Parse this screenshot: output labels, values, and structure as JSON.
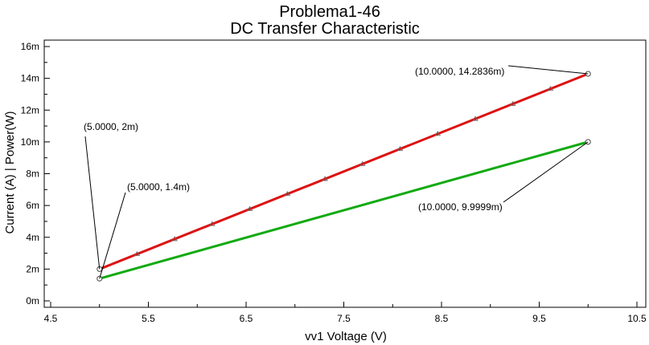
{
  "chart_data": {
    "type": "line",
    "title": "Problema1-46",
    "subtitle": "DC Transfer Characteristic",
    "xlabel": "vv1 Voltage (V)",
    "ylabel": "Current (A) | Power(W)",
    "xlim": [
      4.5,
      10.5
    ],
    "ylim": [
      0,
      0.016
    ],
    "x_ticks": [
      4.5,
      5.5,
      6.5,
      7.5,
      8.5,
      9.5,
      10.5
    ],
    "x_tick_labels": [
      "4.5",
      "5.5",
      "6.5",
      "7.5",
      "8.5",
      "9.5",
      "10.5"
    ],
    "y_ticks": [
      0,
      0.002,
      0.004,
      0.006,
      0.008,
      0.01,
      0.012,
      0.014,
      0.016
    ],
    "y_tick_labels": [
      "0m",
      "2m",
      "4m",
      "6m",
      "8m",
      "10m",
      "12m",
      "14m",
      "16m"
    ],
    "grid": false,
    "series": [
      {
        "color": "#dd1111",
        "marker": "triangle",
        "x": [
          5.0,
          10.0
        ],
        "y": [
          0.002,
          0.0142836
        ]
      },
      {
        "color": "#11aa11",
        "marker": "none",
        "x": [
          5.0,
          10.0
        ],
        "y": [
          0.0014,
          0.0099999
        ]
      }
    ],
    "annotations": [
      {
        "text": "(10.0000, 14.2836m)",
        "x": 10.0,
        "y": 0.0142836
      },
      {
        "text": "(5.0000, 2m)",
        "x": 5.0,
        "y": 0.002
      },
      {
        "text": "(5.0000, 1.4m)",
        "x": 5.0,
        "y": 0.0014
      },
      {
        "text": "(10.0000, 9.9999m)",
        "x": 10.0,
        "y": 0.0099999
      }
    ]
  }
}
